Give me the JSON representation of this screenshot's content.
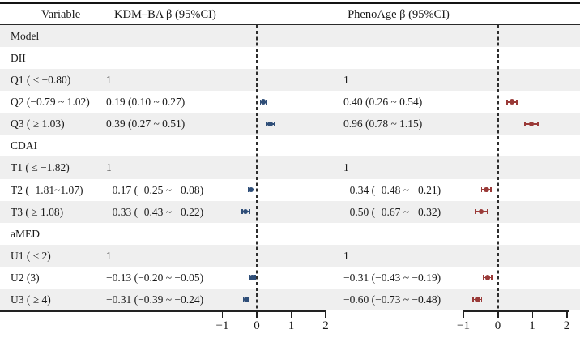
{
  "header": {
    "variable": "Variable",
    "kdm": "KDM–BA  β (95%CI)",
    "pheno": "PhenoAge β (95%CI)"
  },
  "colors": {
    "kdm_marker": "#2f4e78",
    "pheno_marker": "#9a3a38",
    "stripe": "#efefef",
    "line": "#222222"
  },
  "axis": {
    "tick_labels": [
      "−1",
      "0",
      "1",
      "2"
    ],
    "tick_values": [
      -1,
      0,
      1,
      2
    ]
  },
  "chart_data": {
    "type": "forest",
    "title": "",
    "columns": [
      "Variable",
      "KDM–BA  β (95%CI)",
      "PhenoAge β (95%CI)"
    ],
    "series": [
      "KDM–BA",
      "PhenoAge"
    ],
    "xlim": [
      -1.4,
      2.4
    ],
    "xticks": [
      -1,
      0,
      1,
      2
    ],
    "reference_line": 0,
    "groups": [
      "Model",
      "DII",
      "CDAI",
      "aMED"
    ],
    "rows": [
      {
        "variable": "Model",
        "kdm_text": "",
        "pheno_text": ""
      },
      {
        "variable": "DII",
        "kdm_text": "",
        "pheno_text": ""
      },
      {
        "variable": "Q1 ( ≤ −0.80)",
        "kdm_text": "1",
        "pheno_text": "1"
      },
      {
        "variable": "Q2 (−0.79 ~ 1.02)",
        "kdm_text": "0.19 (0.10 ~ 0.27)",
        "pheno_text": "0.40 (0.26 ~ 0.54)",
        "kdm": {
          "est": 0.19,
          "lo": 0.1,
          "hi": 0.27
        },
        "pheno": {
          "est": 0.4,
          "lo": 0.26,
          "hi": 0.54
        }
      },
      {
        "variable": "Q3 ( ≥ 1.03)",
        "kdm_text": "0.39 (0.27 ~ 0.51)",
        "pheno_text": "0.96 (0.78 ~ 1.15)",
        "kdm": {
          "est": 0.39,
          "lo": 0.27,
          "hi": 0.51
        },
        "pheno": {
          "est": 0.96,
          "lo": 0.78,
          "hi": 1.15
        }
      },
      {
        "variable": "CDAI",
        "kdm_text": "",
        "pheno_text": ""
      },
      {
        "variable": "T1 ( ≤ −1.82)",
        "kdm_text": "1",
        "pheno_text": "1"
      },
      {
        "variable": "T2 (−1.81~1.07)",
        "kdm_text": "−0.17 (−0.25 ~ −0.08)",
        "pheno_text": "−0.34 (−0.48 ~ −0.21)",
        "kdm": {
          "est": -0.17,
          "lo": -0.25,
          "hi": -0.08
        },
        "pheno": {
          "est": -0.34,
          "lo": -0.48,
          "hi": -0.21
        }
      },
      {
        "variable": "T3 ( ≥ 1.08)",
        "kdm_text": "−0.33 (−0.43 ~ −0.22)",
        "pheno_text": "−0.50 (−0.67 ~ −0.32)",
        "kdm": {
          "est": -0.33,
          "lo": -0.43,
          "hi": -0.22
        },
        "pheno": {
          "est": -0.5,
          "lo": -0.67,
          "hi": -0.32
        }
      },
      {
        "variable": "aMED",
        "kdm_text": "",
        "pheno_text": ""
      },
      {
        "variable": "U1 ( ≤ 2)",
        "kdm_text": "1",
        "pheno_text": "1"
      },
      {
        "variable": "U2 (3)",
        "kdm_text": "−0.13 (−0.20 ~ −0.05)",
        "pheno_text": "−0.31 (−0.43 ~ −0.19)",
        "kdm": {
          "est": -0.13,
          "lo": -0.2,
          "hi": -0.05
        },
        "pheno": {
          "est": -0.31,
          "lo": -0.43,
          "hi": -0.19
        }
      },
      {
        "variable": "U3 ( ≥ 4)",
        "kdm_text": "−0.31 (−0.39 ~ −0.24)",
        "pheno_text": "−0.60 (−0.73 ~ −0.48)",
        "kdm": {
          "est": -0.31,
          "lo": -0.39,
          "hi": -0.24
        },
        "pheno": {
          "est": -0.6,
          "lo": -0.73,
          "hi": -0.48
        }
      }
    ]
  }
}
